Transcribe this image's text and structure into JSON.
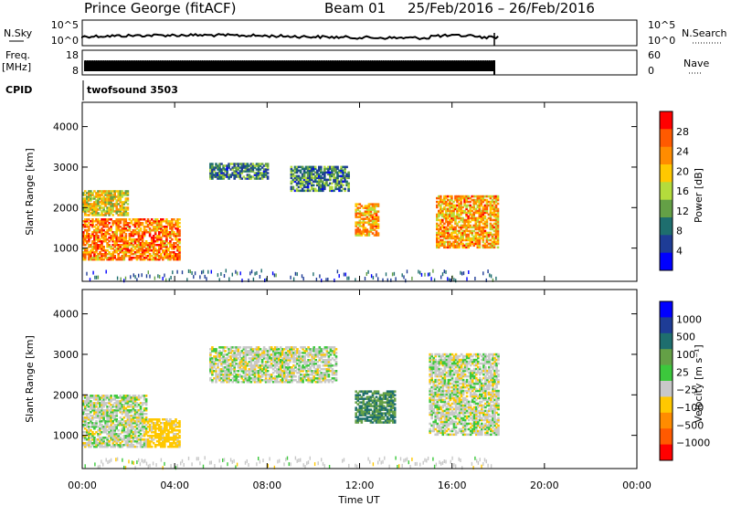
{
  "header": {
    "site": "Prince George (fitACF)",
    "beam": "Beam 01",
    "dates": "25/Feb/2016 – 26/Feb/2016"
  },
  "strips": {
    "nsky_label": "N.Sky",
    "nsky_ticks": [
      "10^5",
      "10^0"
    ],
    "nsky_right_ticks": [
      "10^5",
      "10^0"
    ],
    "nsearch_label": "N.Search",
    "freq_label": "Freq.",
    "freq_unit": "[MHz]",
    "freq_ticks": [
      "18",
      "8"
    ],
    "nave_ticks": [
      "60",
      "0"
    ],
    "nave_label": "Nave",
    "cpid_label": "CPID",
    "cpid_text": "twofsound 3503"
  },
  "panels": {
    "ylabel": "Slant Range [km]",
    "yticks": [
      "4000",
      "3000",
      "2000",
      "1000"
    ],
    "xticks": [
      "00:00",
      "04:00",
      "08:00",
      "12:00",
      "16:00",
      "20:00",
      "00:00"
    ],
    "xlabel": "Time UT"
  },
  "colorbars": {
    "power": {
      "label": "Power [dB]",
      "ticks": [
        "28",
        "24",
        "20",
        "16",
        "12",
        "8",
        "4"
      ],
      "colors": [
        "#ff0000",
        "#ff5a00",
        "#ff8c00",
        "#ffc800",
        "#b4dc3c",
        "#64a046",
        "#1e6e6e",
        "#1e3c96",
        "#0000ff"
      ]
    },
    "velocity": {
      "label": "Velocity [m s⁻¹]",
      "ticks": [
        "1000",
        "500",
        "100",
        "25",
        "−25",
        "−100",
        "−500",
        "−1000"
      ],
      "colors": [
        "#0000ff",
        "#1e3c96",
        "#1e6e6e",
        "#64a046",
        "#3cc83c",
        "#c8c8c8",
        "#ffc800",
        "#ff8c00",
        "#ff5a00",
        "#ff0000"
      ]
    }
  },
  "chart_data": [
    {
      "type": "heatmap",
      "title": "Power",
      "xlabel": "Time UT",
      "ylabel": "Slant Range [km]",
      "xlim": [
        0,
        24
      ],
      "ylim": [
        180,
        4600
      ],
      "grid": false,
      "legend": "right colorbar",
      "data_extent_hours": [
        0.0,
        18.0
      ],
      "regions": [
        {
          "t": [
            0.0,
            4.2
          ],
          "r": [
            700,
            1700
          ],
          "value_db": 24
        },
        {
          "t": [
            0.0,
            2.0
          ],
          "r": [
            1800,
            2400
          ],
          "value_db": 18
        },
        {
          "t": [
            5.5,
            8.0
          ],
          "r": [
            2700,
            3100
          ],
          "value_db": 10
        },
        {
          "t": [
            9.0,
            11.5
          ],
          "r": [
            2400,
            3000
          ],
          "value_db": 10
        },
        {
          "t": [
            11.8,
            12.8
          ],
          "r": [
            1300,
            2100
          ],
          "value_db": 22
        },
        {
          "t": [
            15.3,
            18.0
          ],
          "r": [
            1000,
            2300
          ],
          "value_db": 22
        }
      ]
    },
    {
      "type": "heatmap",
      "title": "Velocity",
      "xlabel": "Time UT",
      "ylabel": "Slant Range [km]",
      "xlim": [
        0,
        24
      ],
      "ylim": [
        180,
        4600
      ],
      "grid": false,
      "legend": "right colorbar",
      "data_extent_hours": [
        0.0,
        18.0
      ],
      "regions": [
        {
          "t": [
            0.0,
            2.8
          ],
          "r": [
            700,
            2000
          ],
          "value_ms": 0
        },
        {
          "t": [
            2.8,
            4.2
          ],
          "r": [
            700,
            1400
          ],
          "value_ms": -60
        },
        {
          "t": [
            5.5,
            11.0
          ],
          "r": [
            2300,
            3200
          ],
          "value_ms": 0
        },
        {
          "t": [
            11.8,
            13.5
          ],
          "r": [
            1300,
            2100
          ],
          "value_ms": 80
        },
        {
          "t": [
            15.0,
            18.0
          ],
          "r": [
            1000,
            3000
          ],
          "value_ms": 0
        }
      ]
    }
  ]
}
